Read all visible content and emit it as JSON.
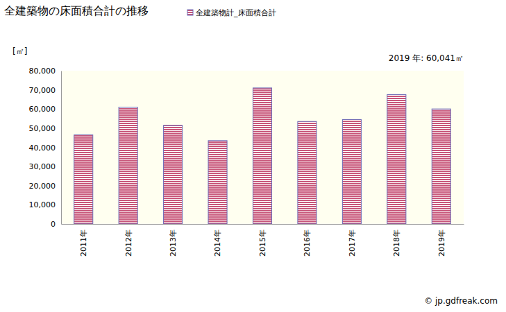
{
  "chart_data": {
    "type": "bar",
    "title": "全建築物の床面積合計の推移",
    "y_label": "[㎡]",
    "categories": [
      "2011年",
      "2012年",
      "2013年",
      "2014年",
      "2015年",
      "2016年",
      "2017年",
      "2018年",
      "2019年"
    ],
    "series": [
      {
        "name": "全建築物計_床面積合計",
        "color": "#c8577a",
        "values": [
          46500,
          61000,
          51500,
          43500,
          71000,
          53500,
          54500,
          67500,
          60041
        ]
      }
    ],
    "ylim": [
      0,
      80000
    ],
    "yticks": [
      0,
      {
        "value": 10000,
        "label": "10,000"
      },
      {
        "value": 20000,
        "label": "20,000"
      },
      {
        "value": 30000,
        "label": "30,000"
      },
      {
        "value": 40000,
        "label": "40,000"
      },
      {
        "value": 50000,
        "label": "50,000"
      },
      {
        "value": 60000,
        "label": "60,000"
      },
      {
        "value": 70000,
        "label": "70,000"
      },
      {
        "value": 80000,
        "label": "80,000"
      }
    ],
    "grid": false,
    "legend": "top",
    "annotations": [
      "2019 年: 60,041㎡",
      "© jp.gdfreak.com"
    ]
  }
}
